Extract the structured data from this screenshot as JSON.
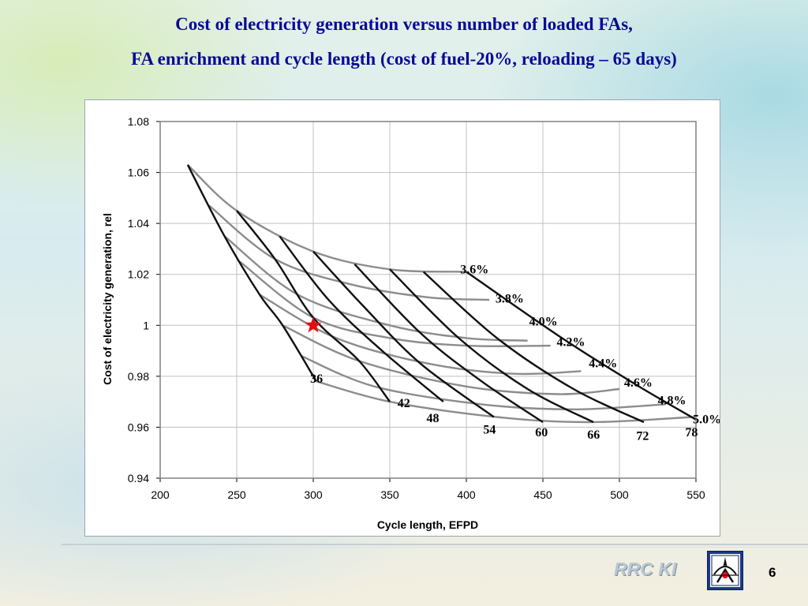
{
  "slide": {
    "title_line1": "Cost of electricity generation versus number of loaded FAs,",
    "title_line2": "FA enrichment and cycle length (cost of fuel-20%, reloading – 65 days)",
    "footer_org": "RRC KI",
    "page_number": "6",
    "title_color": "#0a0a96"
  },
  "chart_data": {
    "type": "line",
    "xlabel": "Cycle length, EFPD",
    "ylabel": "Cost of electricity generation, rel",
    "xlim": [
      200,
      550
    ],
    "ylim": [
      0.94,
      1.08
    ],
    "x_ticks": [
      "200",
      "250",
      "300",
      "350",
      "400",
      "450",
      "500",
      "550"
    ],
    "y_ticks": [
      "0.94",
      "0.96",
      "0.98",
      "1",
      "1.02",
      "1.04",
      "1.06",
      "1.08"
    ],
    "grid": true,
    "marker": {
      "x": 300,
      "y": 1.0,
      "symbol": "star",
      "color": "#e01010"
    },
    "enrichment_series": [
      {
        "name": "3.6%",
        "color": "#8c8c8c",
        "points": [
          [
            218,
            1.063
          ],
          [
            250,
            1.045
          ],
          [
            300,
            1.029
          ],
          [
            350,
            1.022
          ],
          [
            400,
            1.021
          ]
        ]
      },
      {
        "name": "3.8%",
        "color": "#8c8c8c",
        "points": [
          [
            232,
            1.047
          ],
          [
            275,
            1.026
          ],
          [
            325,
            1.016
          ],
          [
            375,
            1.011
          ],
          [
            415,
            1.01
          ]
        ]
      },
      {
        "name": "4.0%",
        "color": "#8c8c8c",
        "points": [
          [
            242,
            1.035
          ],
          [
            290,
            1.012
          ],
          [
            350,
            1.0
          ],
          [
            400,
            0.995
          ],
          [
            440,
            0.994
          ]
        ]
      },
      {
        "name": "4.2%",
        "color": "#8c8c8c",
        "points": [
          [
            252,
            1.025
          ],
          [
            300,
            1.003
          ],
          [
            350,
            0.995
          ],
          [
            400,
            0.992
          ],
          [
            455,
            0.992
          ]
        ]
      },
      {
        "name": "4.4%",
        "color": "#8c8c8c",
        "points": [
          [
            265,
            1.012
          ],
          [
            315,
            0.995
          ],
          [
            375,
            0.985
          ],
          [
            430,
            0.981
          ],
          [
            475,
            0.982
          ]
        ]
      },
      {
        "name": "4.6%",
        "color": "#8c8c8c",
        "points": [
          [
            280,
            1.0
          ],
          [
            330,
            0.986
          ],
          [
            400,
            0.976
          ],
          [
            460,
            0.973
          ],
          [
            500,
            0.975
          ]
        ]
      },
      {
        "name": "4.8%",
        "color": "#8c8c8c",
        "points": [
          [
            292,
            0.988
          ],
          [
            340,
            0.976
          ],
          [
            410,
            0.969
          ],
          [
            470,
            0.967
          ],
          [
            530,
            0.969
          ]
        ]
      },
      {
        "name": "5.0%",
        "color": "#8c8c8c",
        "points": [
          [
            302,
            0.978
          ],
          [
            350,
            0.97
          ],
          [
            420,
            0.964
          ],
          [
            480,
            0.962
          ],
          [
            548,
            0.964
          ]
        ]
      }
    ],
    "fa_series": [
      {
        "name": "36",
        "color": "#111111",
        "points": [
          [
            218,
            1.063
          ],
          [
            242,
            1.035
          ],
          [
            265,
            1.012
          ],
          [
            280,
            1.0
          ],
          [
            302,
            0.978
          ]
        ]
      },
      {
        "name": "42",
        "color": "#111111",
        "points": [
          [
            250,
            1.045
          ],
          [
            275,
            1.026
          ],
          [
            300,
            1.003
          ],
          [
            330,
            0.986
          ],
          [
            350,
            0.97
          ]
        ]
      },
      {
        "name": "48",
        "color": "#111111",
        "points": [
          [
            278,
            1.035
          ],
          [
            310,
            1.01
          ],
          [
            345,
            0.99
          ],
          [
            385,
            0.97
          ]
        ]
      },
      {
        "name": "54",
        "color": "#111111",
        "points": [
          [
            300,
            1.029
          ],
          [
            332,
            1.008
          ],
          [
            370,
            0.985
          ],
          [
            418,
            0.964
          ]
        ]
      },
      {
        "name": "60",
        "color": "#111111",
        "points": [
          [
            327,
            1.024
          ],
          [
            370,
            0.997
          ],
          [
            410,
            0.978
          ],
          [
            450,
            0.962
          ]
        ]
      },
      {
        "name": "66",
        "color": "#111111",
        "points": [
          [
            350,
            1.022
          ],
          [
            395,
            0.995
          ],
          [
            440,
            0.975
          ],
          [
            483,
            0.962
          ]
        ]
      },
      {
        "name": "72",
        "color": "#111111",
        "points": [
          [
            372,
            1.021
          ],
          [
            420,
            0.995
          ],
          [
            470,
            0.975
          ],
          [
            516,
            0.962
          ]
        ]
      },
      {
        "name": "78",
        "color": "#111111",
        "points": [
          [
            400,
            1.021
          ],
          [
            460,
            0.996
          ],
          [
            510,
            0.977
          ],
          [
            550,
            0.963
          ]
        ]
      }
    ],
    "enrichment_labels": [
      {
        "text": "3.6%",
        "x": 395,
        "y": 1.022
      },
      {
        "text": "3.8%",
        "x": 418,
        "y": 1.0105
      },
      {
        "text": "4.0%",
        "x": 440,
        "y": 1.0015
      },
      {
        "text": "4.2%",
        "x": 458,
        "y": 0.9935
      },
      {
        "text": "4.4%",
        "x": 479,
        "y": 0.985
      },
      {
        "text": "4.6%",
        "x": 502,
        "y": 0.9775
      },
      {
        "text": "4.8%",
        "x": 524,
        "y": 0.9705
      },
      {
        "text": "5.0%",
        "x": 547,
        "y": 0.963
      }
    ],
    "fa_labels": [
      {
        "text": "36",
        "x": 298,
        "y": 0.979
      },
      {
        "text": "42",
        "x": 355,
        "y": 0.9695
      },
      {
        "text": "48",
        "x": 374,
        "y": 0.9635
      },
      {
        "text": "54",
        "x": 411,
        "y": 0.959
      },
      {
        "text": "60",
        "x": 445,
        "y": 0.958
      },
      {
        "text": "66",
        "x": 479,
        "y": 0.957
      },
      {
        "text": "72",
        "x": 511,
        "y": 0.9565
      },
      {
        "text": "78",
        "x": 543,
        "y": 0.958
      }
    ]
  }
}
